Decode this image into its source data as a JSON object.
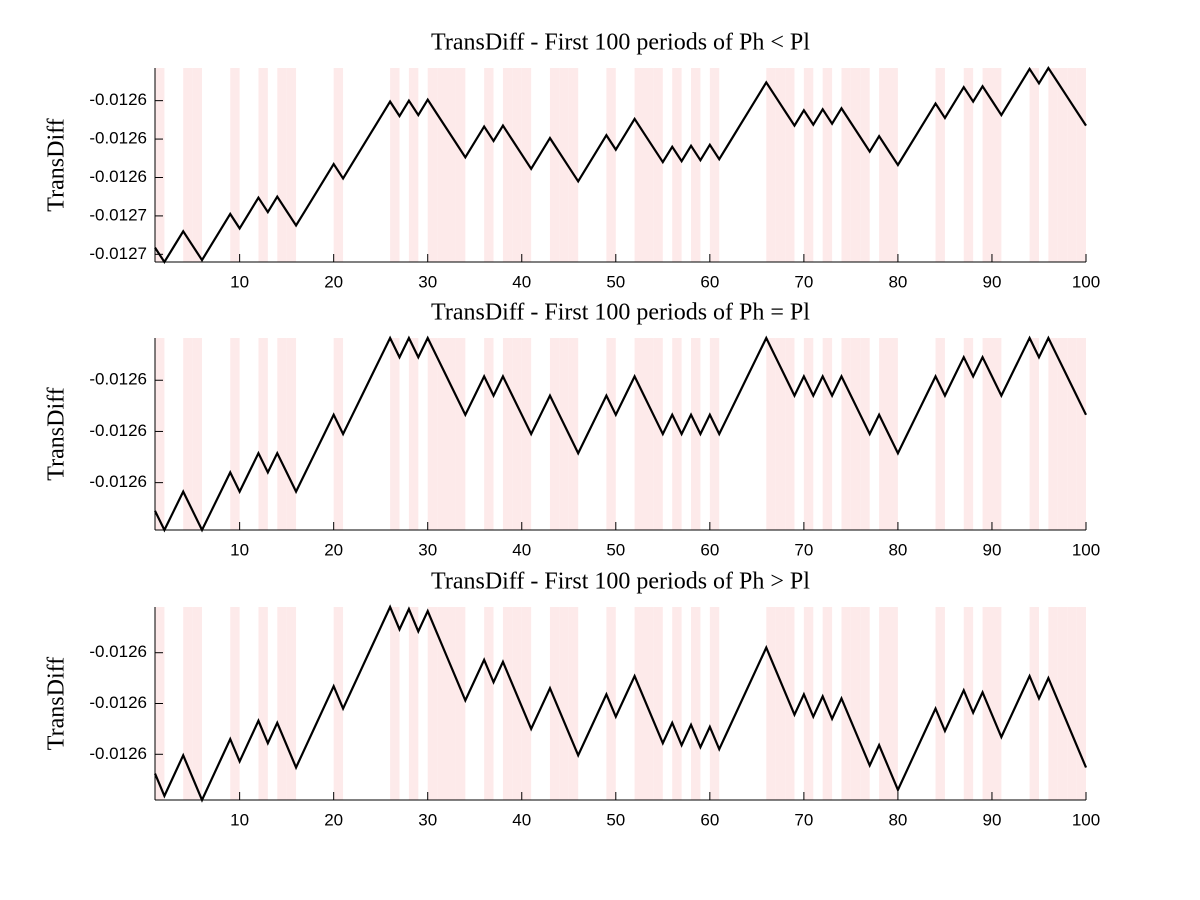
{
  "chart_data": [
    {
      "type": "line",
      "title": "TransDiff - First 100 periods of Ph < Pl",
      "y_label": "TransDiff",
      "shade_color": "#fdeaea",
      "x": [
        1,
        2,
        3,
        4,
        5,
        6,
        7,
        8,
        9,
        10,
        11,
        12,
        13,
        14,
        15,
        16,
        17,
        18,
        19,
        20,
        21,
        22,
        23,
        24,
        25,
        26,
        27,
        28,
        29,
        30,
        31,
        32,
        33,
        34,
        35,
        36,
        37,
        38,
        39,
        40,
        41,
        42,
        43,
        44,
        45,
        46,
        47,
        48,
        49,
        50,
        51,
        52,
        53,
        54,
        55,
        56,
        57,
        58,
        59,
        60,
        61,
        62,
        63,
        64,
        65,
        66,
        67,
        68,
        69,
        70,
        71,
        72,
        73,
        74,
        75,
        76,
        77,
        78,
        79,
        80,
        81,
        82,
        83,
        84,
        85,
        86,
        87,
        88,
        89,
        90,
        91,
        92,
        93,
        94,
        95,
        96,
        97,
        98,
        99,
        100
      ],
      "series": [
        {
          "color": "#000000",
          "values": [
            -0.0126553,
            -0.0126568,
            -0.0126552,
            -0.0126536,
            -0.0126551,
            -0.0126566,
            -0.012655,
            -0.0126534,
            -0.0126518,
            -0.0126533,
            -0.0126517,
            -0.0126501,
            -0.0126516,
            -0.01265,
            -0.0126515,
            -0.012653,
            -0.0126514,
            -0.0126498,
            -0.0126482,
            -0.0126466,
            -0.0126481,
            -0.0126465,
            -0.0126449,
            -0.0126433,
            -0.0126417,
            -0.0126401,
            -0.0126416,
            -0.01264,
            -0.0126415,
            -0.0126399,
            -0.0126414,
            -0.0126429,
            -0.0126444,
            -0.0126459,
            -0.0126443,
            -0.0126427,
            -0.0126442,
            -0.0126426,
            -0.0126441,
            -0.0126456,
            -0.0126471,
            -0.0126455,
            -0.0126439,
            -0.0126454,
            -0.0126469,
            -0.0126484,
            -0.0126468,
            -0.0126452,
            -0.0126436,
            -0.0126451,
            -0.0126435,
            -0.0126419,
            -0.0126434,
            -0.0126449,
            -0.0126464,
            -0.0126448,
            -0.0126463,
            -0.0126447,
            -0.0126462,
            -0.0126446,
            -0.0126461,
            -0.0126445,
            -0.0126429,
            -0.0126413,
            -0.0126397,
            -0.0126381,
            -0.0126396,
            -0.0126411,
            -0.0126426,
            -0.012641,
            -0.0126425,
            -0.0126409,
            -0.0126424,
            -0.0126408,
            -0.0126423,
            -0.0126438,
            -0.0126453,
            -0.0126437,
            -0.0126452,
            -0.0126467,
            -0.0126451,
            -0.0126435,
            -0.0126419,
            -0.0126403,
            -0.0126418,
            -0.0126402,
            -0.0126386,
            -0.0126401,
            -0.0126385,
            -0.01264,
            -0.0126415,
            -0.0126399,
            -0.0126383,
            -0.0126367,
            -0.0126382,
            -0.0126366,
            -0.0126381,
            -0.0126396,
            -0.0126411,
            -0.0126426
          ]
        }
      ],
      "xlim": [
        1,
        100
      ],
      "xticks": [
        10,
        20,
        30,
        40,
        50,
        60,
        70,
        80,
        90,
        100
      ],
      "ylim": [
        -0.0126568,
        -0.0126366
      ],
      "yticks": [
        {
          "value": -0.012656,
          "label": "-0.0127"
        },
        {
          "value": -0.012652,
          "label": "-0.0127"
        },
        {
          "value": -0.012648,
          "label": "-0.0126"
        },
        {
          "value": -0.012644,
          "label": "-0.0126"
        },
        {
          "value": -0.01264,
          "label": "-0.0126"
        }
      ]
    },
    {
      "type": "line",
      "title": "TransDiff - First 100 periods of Ph = Pl",
      "y_label": "TransDiff",
      "shade_color": "#fdeaea",
      "x": [
        1,
        2,
        3,
        4,
        5,
        6,
        7,
        8,
        9,
        10,
        11,
        12,
        13,
        14,
        15,
        16,
        17,
        18,
        19,
        20,
        21,
        22,
        23,
        24,
        25,
        26,
        27,
        28,
        29,
        30,
        31,
        32,
        33,
        34,
        35,
        36,
        37,
        38,
        39,
        40,
        41,
        42,
        43,
        44,
        45,
        46,
        47,
        48,
        49,
        50,
        51,
        52,
        53,
        54,
        55,
        56,
        57,
        58,
        59,
        60,
        61,
        62,
        63,
        64,
        65,
        66,
        67,
        68,
        69,
        70,
        71,
        72,
        73,
        74,
        75,
        76,
        77,
        78,
        79,
        80,
        81,
        82,
        83,
        84,
        85,
        86,
        87,
        88,
        89,
        90,
        91,
        92,
        93,
        94,
        95,
        96,
        97,
        98,
        99,
        100
      ],
      "series": [
        {
          "color": "#000000",
          "values": [
            -0.0126512,
            -0.0126527,
            -0.0126512,
            -0.0126497,
            -0.0126512,
            -0.0126527,
            -0.0126512,
            -0.0126497,
            -0.0126482,
            -0.0126497,
            -0.0126482,
            -0.0126467,
            -0.0126482,
            -0.0126467,
            -0.0126482,
            -0.0126497,
            -0.0126482,
            -0.0126467,
            -0.0126452,
            -0.0126437,
            -0.0126452,
            -0.0126437,
            -0.0126422,
            -0.0126407,
            -0.0126392,
            -0.0126377,
            -0.0126392,
            -0.0126377,
            -0.0126392,
            -0.0126377,
            -0.0126392,
            -0.0126407,
            -0.0126422,
            -0.0126437,
            -0.0126422,
            -0.0126407,
            -0.0126422,
            -0.0126407,
            -0.0126422,
            -0.0126437,
            -0.0126452,
            -0.0126437,
            -0.0126422,
            -0.0126437,
            -0.0126452,
            -0.0126467,
            -0.0126452,
            -0.0126437,
            -0.0126422,
            -0.0126437,
            -0.0126422,
            -0.0126407,
            -0.0126422,
            -0.0126437,
            -0.0126452,
            -0.0126437,
            -0.0126452,
            -0.0126437,
            -0.0126452,
            -0.0126437,
            -0.0126452,
            -0.0126437,
            -0.0126422,
            -0.0126407,
            -0.0126392,
            -0.0126377,
            -0.0126392,
            -0.0126407,
            -0.0126422,
            -0.0126407,
            -0.0126422,
            -0.0126407,
            -0.0126422,
            -0.0126407,
            -0.0126422,
            -0.0126437,
            -0.0126452,
            -0.0126437,
            -0.0126452,
            -0.0126467,
            -0.0126452,
            -0.0126437,
            -0.0126422,
            -0.0126407,
            -0.0126422,
            -0.0126407,
            -0.0126392,
            -0.0126407,
            -0.0126392,
            -0.0126407,
            -0.0126422,
            -0.0126407,
            -0.0126392,
            -0.0126377,
            -0.0126392,
            -0.0126377,
            -0.0126392,
            -0.0126407,
            -0.0126422,
            -0.0126437
          ]
        }
      ],
      "xlim": [
        1,
        100
      ],
      "xticks": [
        10,
        20,
        30,
        40,
        50,
        60,
        70,
        80,
        90,
        100
      ],
      "ylim": [
        -0.0126527,
        -0.0126377
      ],
      "yticks": [
        {
          "value": -0.012649,
          "label": "-0.0126"
        },
        {
          "value": -0.012645,
          "label": "-0.0126"
        },
        {
          "value": -0.012641,
          "label": "-0.0126"
        }
      ]
    },
    {
      "type": "line",
      "title": "TransDiff - First 100 periods of Ph > Pl",
      "y_label": "TransDiff",
      "shade_color": "#fdeaea",
      "x": [
        1,
        2,
        3,
        4,
        5,
        6,
        7,
        8,
        9,
        10,
        11,
        12,
        13,
        14,
        15,
        16,
        17,
        18,
        19,
        20,
        21,
        22,
        23,
        24,
        25,
        26,
        27,
        28,
        29,
        30,
        31,
        32,
        33,
        34,
        35,
        36,
        37,
        38,
        39,
        40,
        41,
        42,
        43,
        44,
        45,
        46,
        47,
        48,
        49,
        50,
        51,
        52,
        53,
        54,
        55,
        56,
        57,
        58,
        59,
        60,
        61,
        62,
        63,
        64,
        65,
        66,
        67,
        68,
        69,
        70,
        71,
        72,
        73,
        74,
        75,
        76,
        77,
        78,
        79,
        80,
        81,
        82,
        83,
        84,
        85,
        86,
        87,
        88,
        89,
        90,
        91,
        92,
        93,
        94,
        95,
        96,
        97,
        98,
        99,
        100
      ],
      "series": [
        {
          "color": "#000000",
          "values": [
            -0.0126518,
            -0.012654,
            -0.012652,
            -0.01265,
            -0.0126522,
            -0.0126544,
            -0.0126524,
            -0.0126504,
            -0.0126484,
            -0.0126506,
            -0.0126486,
            -0.0126466,
            -0.0126488,
            -0.0126468,
            -0.012649,
            -0.0126512,
            -0.0126492,
            -0.0126472,
            -0.0126452,
            -0.0126432,
            -0.0126454,
            -0.0126434,
            -0.0126414,
            -0.0126394,
            -0.0126374,
            -0.0126354,
            -0.0126376,
            -0.0126356,
            -0.0126378,
            -0.0126358,
            -0.012638,
            -0.0126402,
            -0.0126424,
            -0.0126446,
            -0.0126426,
            -0.0126406,
            -0.0126428,
            -0.0126408,
            -0.012643,
            -0.0126452,
            -0.0126474,
            -0.0126454,
            -0.0126434,
            -0.0126456,
            -0.0126478,
            -0.01265,
            -0.012648,
            -0.012646,
            -0.012644,
            -0.0126462,
            -0.0126442,
            -0.0126422,
            -0.0126444,
            -0.0126466,
            -0.0126488,
            -0.0126468,
            -0.012649,
            -0.012647,
            -0.0126492,
            -0.0126472,
            -0.0126494,
            -0.0126474,
            -0.0126454,
            -0.0126434,
            -0.0126414,
            -0.0126394,
            -0.0126416,
            -0.0126438,
            -0.012646,
            -0.012644,
            -0.0126462,
            -0.0126442,
            -0.0126464,
            -0.0126444,
            -0.0126466,
            -0.0126488,
            -0.012651,
            -0.012649,
            -0.0126512,
            -0.0126534,
            -0.0126514,
            -0.0126494,
            -0.0126474,
            -0.0126454,
            -0.0126476,
            -0.0126456,
            -0.0126436,
            -0.0126458,
            -0.0126438,
            -0.012646,
            -0.0126482,
            -0.0126462,
            -0.0126442,
            -0.0126422,
            -0.0126444,
            -0.0126424,
            -0.0126446,
            -0.0126468,
            -0.012649,
            -0.0126512
          ]
        }
      ],
      "xlim": [
        1,
        100
      ],
      "xticks": [
        10,
        20,
        30,
        40,
        50,
        60,
        70,
        80,
        90,
        100
      ],
      "ylim": [
        -0.0126544,
        -0.0126354
      ],
      "yticks": [
        {
          "value": -0.0126499,
          "label": "-0.0126"
        },
        {
          "value": -0.0126449,
          "label": "-0.0126"
        },
        {
          "value": -0.0126399,
          "label": "-0.0126"
        }
      ]
    }
  ]
}
